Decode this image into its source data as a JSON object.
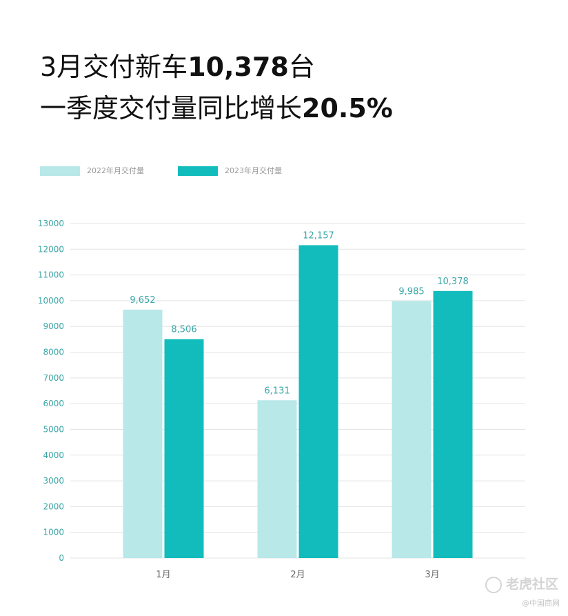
{
  "header": {
    "line1_prefix": "3月交付新车",
    "line1_highlight": "10,378",
    "line1_suffix": "台",
    "line2_prefix": "一季度交付量同比增长",
    "line2_highlight": "20.5%"
  },
  "watermark": {
    "main": "老虎社区",
    "sub": "@中国商网"
  },
  "colors": {
    "series_2022": "#b8e8e8",
    "series_2023": "#12bcbc",
    "axis_text": "#3aa6a6",
    "grid": "#e4e4e4"
  },
  "chart_data": {
    "type": "bar",
    "categories": [
      "1月",
      "2月",
      "3月"
    ],
    "series": [
      {
        "name": "2022年月交付量",
        "values": [
          9652,
          6131,
          9985
        ],
        "labels": [
          "9,652",
          "6,131",
          "9,985"
        ]
      },
      {
        "name": "2023年月交付量",
        "values": [
          8506,
          12157,
          10378
        ],
        "labels": [
          "8,506",
          "12,157",
          "10,378"
        ]
      }
    ],
    "ylim": [
      0,
      13000
    ],
    "yticks": [
      0,
      1000,
      2000,
      3000,
      4000,
      5000,
      6000,
      7000,
      8000,
      9000,
      10000,
      11000,
      12000,
      13000
    ],
    "grid": true,
    "legend_position": "top-left"
  }
}
